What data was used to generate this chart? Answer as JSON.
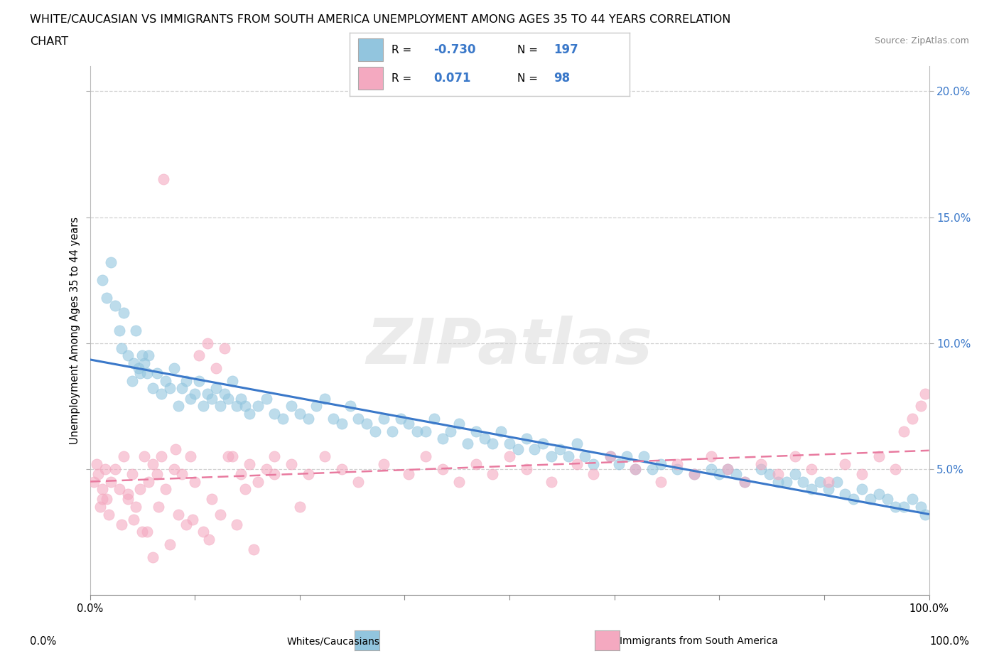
{
  "title_line1": "WHITE/CAUCASIAN VS IMMIGRANTS FROM SOUTH AMERICA UNEMPLOYMENT AMONG AGES 35 TO 44 YEARS CORRELATION",
  "title_line2": "CHART",
  "source_text": "Source: ZipAtlas.com",
  "ylabel": "Unemployment Among Ages 35 to 44 years",
  "xlim": [
    0.0,
    100.0
  ],
  "ylim": [
    0.0,
    21.0
  ],
  "yticks": [
    5.0,
    10.0,
    15.0,
    20.0
  ],
  "ytick_labels": [
    "5.0%",
    "10.0%",
    "15.0%",
    "20.0%"
  ],
  "xticks": [
    0.0,
    12.5,
    25.0,
    37.5,
    50.0,
    62.5,
    75.0,
    87.5,
    100.0
  ],
  "xtick_bottom_labels": [
    "0.0%",
    "",
    "",
    "",
    "",
    "",
    "",
    "",
    "100.0%"
  ],
  "blue_color": "#92c5de",
  "pink_color": "#f4a9c0",
  "blue_line_color": "#3a78c9",
  "pink_line_color": "#e87a9f",
  "watermark_text": "ZIPatlas",
  "legend_R1": "-0.730",
  "legend_N1": "197",
  "legend_R2": "0.071",
  "legend_N2": "98",
  "legend_label1": "Whites/Caucasians",
  "legend_label2": "Immigrants from South America",
  "blue_scatter_x": [
    1.5,
    2.0,
    2.5,
    3.0,
    3.5,
    3.8,
    4.0,
    4.5,
    5.0,
    5.2,
    5.5,
    5.8,
    6.0,
    6.2,
    6.5,
    6.8,
    7.0,
    7.5,
    8.0,
    8.5,
    9.0,
    9.5,
    10.0,
    10.5,
    11.0,
    11.5,
    12.0,
    12.5,
    13.0,
    13.5,
    14.0,
    14.5,
    15.0,
    15.5,
    16.0,
    16.5,
    17.0,
    17.5,
    18.0,
    18.5,
    19.0,
    20.0,
    21.0,
    22.0,
    23.0,
    24.0,
    25.0,
    26.0,
    27.0,
    28.0,
    29.0,
    30.0,
    31.0,
    32.0,
    33.0,
    34.0,
    35.0,
    36.0,
    37.0,
    38.0,
    39.0,
    40.0,
    41.0,
    42.0,
    43.0,
    44.0,
    45.0,
    46.0,
    47.0,
    48.0,
    49.0,
    50.0,
    51.0,
    52.0,
    53.0,
    54.0,
    55.0,
    56.0,
    57.0,
    58.0,
    59.0,
    60.0,
    62.0,
    63.0,
    64.0,
    65.0,
    66.0,
    67.0,
    68.0,
    70.0,
    72.0,
    74.0,
    75.0,
    76.0,
    77.0,
    78.0,
    80.0,
    81.0,
    82.0,
    83.0,
    84.0,
    85.0,
    86.0,
    87.0,
    88.0,
    89.0,
    90.0,
    91.0,
    92.0,
    93.0,
    94.0,
    95.0,
    96.0,
    97.0,
    98.0,
    99.0,
    99.5
  ],
  "blue_scatter_y": [
    12.5,
    11.8,
    13.2,
    11.5,
    10.5,
    9.8,
    11.2,
    9.5,
    8.5,
    9.2,
    10.5,
    9.0,
    8.8,
    9.5,
    9.2,
    8.8,
    9.5,
    8.2,
    8.8,
    8.0,
    8.5,
    8.2,
    9.0,
    7.5,
    8.2,
    8.5,
    7.8,
    8.0,
    8.5,
    7.5,
    8.0,
    7.8,
    8.2,
    7.5,
    8.0,
    7.8,
    8.5,
    7.5,
    7.8,
    7.5,
    7.2,
    7.5,
    7.8,
    7.2,
    7.0,
    7.5,
    7.2,
    7.0,
    7.5,
    7.8,
    7.0,
    6.8,
    7.5,
    7.0,
    6.8,
    6.5,
    7.0,
    6.5,
    7.0,
    6.8,
    6.5,
    6.5,
    7.0,
    6.2,
    6.5,
    6.8,
    6.0,
    6.5,
    6.2,
    6.0,
    6.5,
    6.0,
    5.8,
    6.2,
    5.8,
    6.0,
    5.5,
    5.8,
    5.5,
    6.0,
    5.5,
    5.2,
    5.5,
    5.2,
    5.5,
    5.0,
    5.5,
    5.0,
    5.2,
    5.0,
    4.8,
    5.0,
    4.8,
    5.0,
    4.8,
    4.5,
    5.0,
    4.8,
    4.5,
    4.5,
    4.8,
    4.5,
    4.2,
    4.5,
    4.2,
    4.5,
    4.0,
    3.8,
    4.2,
    3.8,
    4.0,
    3.8,
    3.5,
    3.5,
    3.8,
    3.5,
    3.2
  ],
  "pink_scatter_x": [
    0.5,
    0.8,
    1.0,
    1.2,
    1.5,
    1.8,
    2.0,
    2.5,
    3.0,
    3.5,
    4.0,
    4.5,
    5.0,
    5.5,
    6.0,
    6.5,
    7.0,
    7.5,
    8.0,
    8.5,
    9.0,
    10.0,
    11.0,
    12.0,
    13.0,
    14.0,
    15.0,
    16.0,
    17.0,
    18.0,
    19.0,
    20.0,
    21.0,
    22.0,
    24.0,
    26.0,
    28.0,
    30.0,
    32.0,
    35.0,
    38.0,
    40.0,
    42.0,
    44.0,
    46.0,
    48.0,
    50.0,
    52.0,
    55.0,
    58.0,
    60.0,
    62.0,
    65.0,
    68.0,
    70.0,
    72.0,
    74.0,
    76.0,
    78.0,
    80.0,
    82.0,
    84.0,
    86.0,
    88.0,
    90.0,
    92.0,
    94.0,
    96.0,
    97.0,
    98.0,
    99.0,
    99.5,
    1.5,
    2.2,
    3.8,
    5.2,
    6.8,
    8.2,
    10.5,
    12.5,
    14.5,
    16.5,
    18.5,
    22.0,
    25.0,
    7.5,
    9.5,
    11.5,
    13.5,
    15.5,
    17.5,
    19.5,
    4.5,
    6.2,
    8.8,
    10.2,
    12.2,
    14.2
  ],
  "pink_scatter_y": [
    4.5,
    5.2,
    4.8,
    3.5,
    4.2,
    5.0,
    3.8,
    4.5,
    5.0,
    4.2,
    5.5,
    4.0,
    4.8,
    3.5,
    4.2,
    5.5,
    4.5,
    5.2,
    4.8,
    5.5,
    4.2,
    5.0,
    4.8,
    5.5,
    9.5,
    10.0,
    9.0,
    9.8,
    5.5,
    4.8,
    5.2,
    4.5,
    5.0,
    5.5,
    5.2,
    4.8,
    5.5,
    5.0,
    4.5,
    5.2,
    4.8,
    5.5,
    5.0,
    4.5,
    5.2,
    4.8,
    5.5,
    5.0,
    4.5,
    5.2,
    4.8,
    5.5,
    5.0,
    4.5,
    5.2,
    4.8,
    5.5,
    5.0,
    4.5,
    5.2,
    4.8,
    5.5,
    5.0,
    4.5,
    5.2,
    4.8,
    5.5,
    5.0,
    6.5,
    7.0,
    7.5,
    8.0,
    3.8,
    3.2,
    2.8,
    3.0,
    2.5,
    3.5,
    3.2,
    4.5,
    3.8,
    5.5,
    4.2,
    4.8,
    3.5,
    1.5,
    2.0,
    2.8,
    2.5,
    3.2,
    2.8,
    1.8,
    3.8,
    2.5,
    16.5,
    5.8,
    3.0,
    2.2
  ],
  "background_color": "#ffffff",
  "grid_color": "#d0d0d0",
  "right_tick_color": "#3a78c9"
}
